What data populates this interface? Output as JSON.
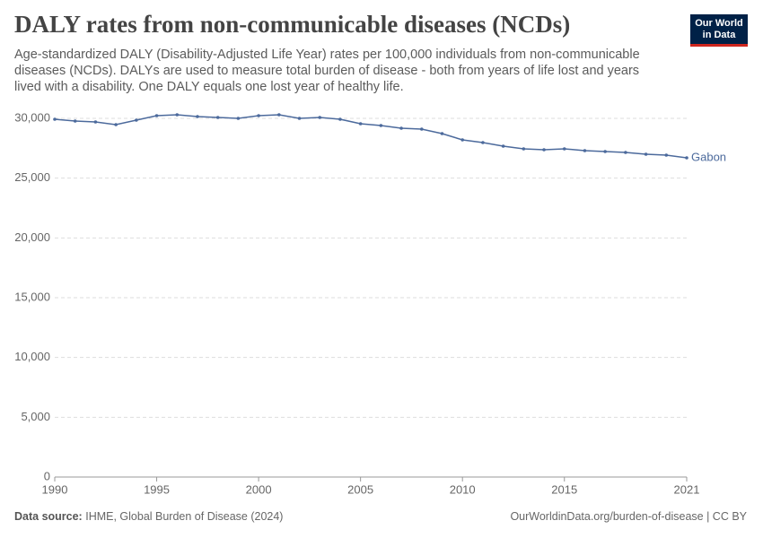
{
  "chart_data": {
    "type": "line",
    "title": "DALY rates from non-communicable diseases (NCDs)",
    "subtitle": "Age-standardized DALY (Disability-Adjusted Life Year) rates per 100,000 individuals from non-communicable diseases (NCDs). DALYs are used to measure total burden of disease - both from years of life lost and years lived with a disability. One DALY equals one lost year of healthy life.",
    "logo": [
      "Our World",
      "in Data"
    ],
    "source_label": "Data source:",
    "source": "IHME, Global Burden of Disease (2024)",
    "footer_right": "OurWorldinData.org/burden-of-disease | CC BY",
    "x": [
      1990,
      1991,
      1992,
      1993,
      1994,
      1995,
      1996,
      1997,
      1998,
      1999,
      2000,
      2001,
      2002,
      2003,
      2004,
      2005,
      2006,
      2007,
      2008,
      2009,
      2010,
      2011,
      2012,
      2013,
      2014,
      2015,
      2016,
      2017,
      2018,
      2019,
      2020,
      2021
    ],
    "series": [
      {
        "name": "Gabon",
        "color": "#4c6a9c",
        "values": [
          29925,
          29775,
          29700,
          29475,
          29850,
          30225,
          30300,
          30150,
          30075,
          30000,
          30225,
          30300,
          30000,
          30075,
          29925,
          29550,
          29400,
          29175,
          29100,
          28725,
          28200,
          27975,
          27675,
          27450,
          27375,
          27450,
          27300,
          27225,
          27150,
          27000,
          26925,
          26700
        ]
      }
    ],
    "xlim": [
      1990,
      2021
    ],
    "xticks": [
      1990,
      1995,
      2000,
      2005,
      2010,
      2015,
      2021
    ],
    "ylim": [
      0,
      30000
    ],
    "yticks": [
      0,
      {
        "value": 5000,
        "label": "5,000"
      },
      {
        "value": 10000,
        "label": "10,000"
      },
      {
        "value": 15000,
        "label": "15,000"
      },
      {
        "value": 20000,
        "label": "20,000"
      },
      {
        "value": 25000,
        "label": "25,000"
      },
      {
        "value": 30000,
        "label": "30,000"
      }
    ],
    "grid": true
  }
}
